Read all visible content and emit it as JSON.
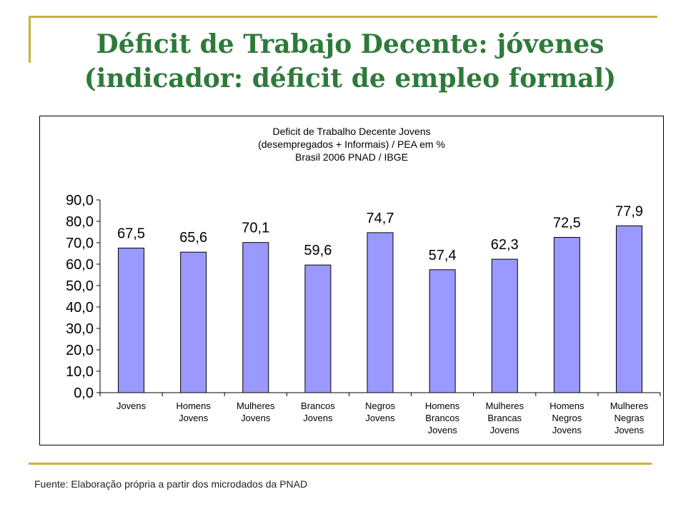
{
  "slide": {
    "title_line1": "Déficit de Trabajo Decente: jóvenes",
    "title_line2": "(indicador: déficit de empleo formal)",
    "source": "Fuente: Elaboração própria a partir dos microdados da PNAD",
    "accent_color": "#c9b23c",
    "title_color": "#2e7a3a"
  },
  "chart_data": {
    "type": "bar",
    "title_lines": [
      "Deficit de Trabalho Decente Jovens",
      "(desempregados + Informais) / PEA em %",
      "Brasil 2006 PNAD / IBGE"
    ],
    "categories": [
      [
        "Jovens"
      ],
      [
        "Homens",
        "Jovens"
      ],
      [
        "Mulheres",
        "Jovens"
      ],
      [
        "Brancos",
        "Jovens"
      ],
      [
        "Negros",
        "Jovens"
      ],
      [
        "Homens",
        "Brancos",
        "Jovens"
      ],
      [
        "Mulheres",
        "Brancas",
        "Jovens"
      ],
      [
        "Homens",
        "Negros",
        "Jovens"
      ],
      [
        "Mulheres",
        "Negras",
        "Jovens"
      ]
    ],
    "values": [
      67.5,
      65.6,
      70.1,
      59.6,
      74.7,
      57.4,
      62.3,
      72.5,
      77.9
    ],
    "data_labels": [
      "67,5",
      "65,6",
      "70,1",
      "59,6",
      "74,7",
      "57,4",
      "62,3",
      "72,5",
      "77,9"
    ],
    "ylim": [
      0,
      90
    ],
    "yticks": [
      "0,0",
      "10,0",
      "20,0",
      "30,0",
      "40,0",
      "50,0",
      "60,0",
      "70,0",
      "80,0",
      "90,0"
    ],
    "bar_color": "#9999ff",
    "grid": false,
    "legend": "none"
  }
}
